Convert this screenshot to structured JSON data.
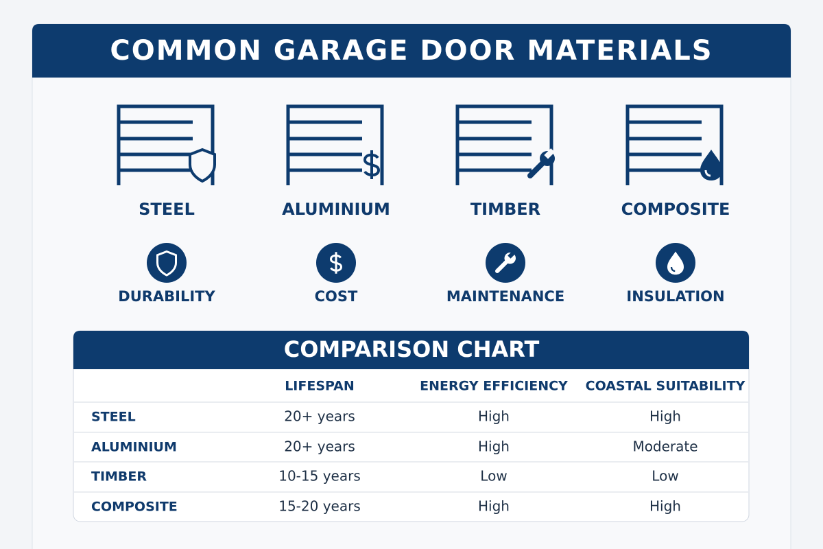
{
  "header": {
    "title": "COMMON GARAGE DOOR MATERIALS"
  },
  "materials": [
    "STEEL",
    "ALUMINIUM",
    "TIMBER",
    "COMPOSITE"
  ],
  "factors": [
    "DURABILITY",
    "COST",
    "MAINTENANCE",
    "INSULATION"
  ],
  "table": {
    "title": "COMPARISON CHART",
    "columns": [
      "LIFESPAN",
      "ENERGY EFFICIENCY",
      "COASTAL SUITABILITY"
    ],
    "rows": [
      [
        "STEEL",
        "20+ years",
        "High",
        "High"
      ],
      [
        "ALUMINIUM",
        "20+ years",
        "High",
        "Moderate"
      ],
      [
        "TIMBER",
        "10-15 years",
        "Low",
        "Low"
      ],
      [
        "COMPOSITE",
        "15-20 years",
        "High",
        "High"
      ]
    ]
  }
}
